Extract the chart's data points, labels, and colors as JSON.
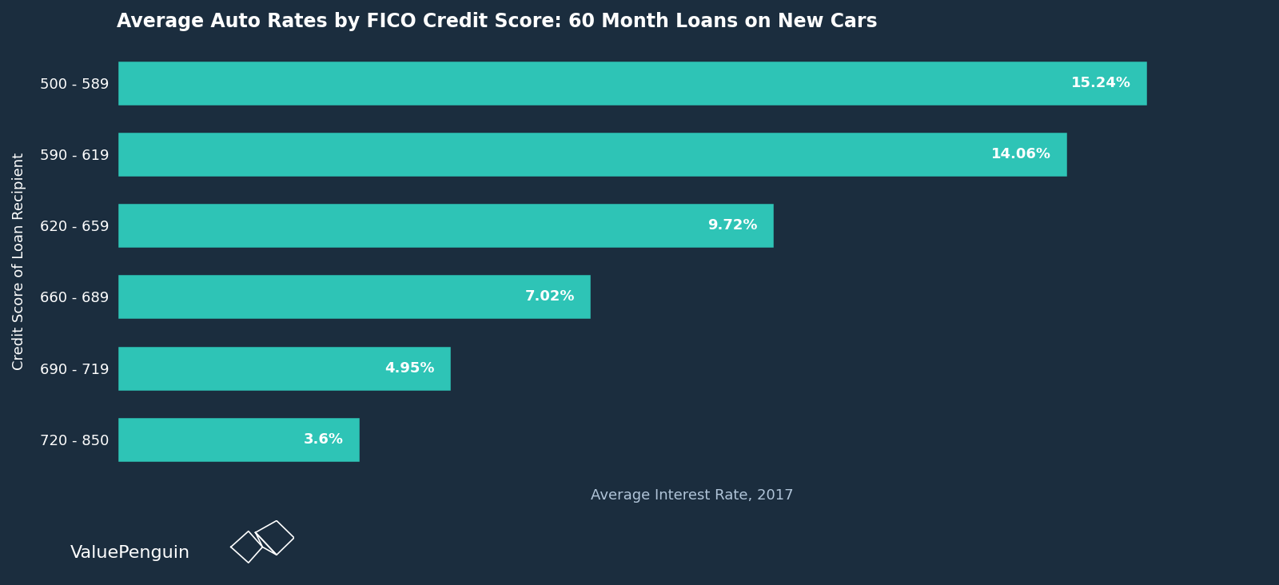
{
  "title": "Average Auto Rates by FICO Credit Score: 60 Month Loans on New Cars",
  "xlabel": "Average Interest Rate, 2017",
  "ylabel": "Credit Score of Loan Recipient",
  "categories": [
    "720 - 850",
    "690 - 719",
    "660 - 689",
    "620 - 659",
    "590 - 619",
    "500 - 589"
  ],
  "values": [
    3.6,
    4.95,
    7.02,
    9.72,
    14.06,
    15.24
  ],
  "labels": [
    "3.6%",
    "4.95%",
    "7.02%",
    "9.72%",
    "14.06%",
    "15.24%"
  ],
  "bar_color": "#2ec4b6",
  "background_color": "#1b2d3e",
  "text_color": "#ffffff",
  "label_color": "#b0c4d8",
  "title_fontsize": 17,
  "tick_fontsize": 13,
  "xlabel_fontsize": 13,
  "ylabel_fontsize": 13,
  "bar_label_fontsize": 13,
  "watermark": "ValuePenguin",
  "xlim": [
    0,
    17
  ]
}
